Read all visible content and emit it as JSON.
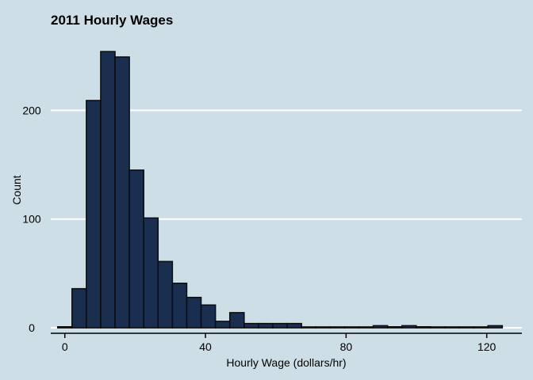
{
  "chart_data": {
    "type": "bar",
    "title": "2011 Hourly Wages",
    "xlabel": "Hourly Wage (dollars/hr)",
    "ylabel": "Count",
    "xlim": [
      -4,
      130
    ],
    "ylim": [
      -5,
      265
    ],
    "xticks": [
      0,
      40,
      80,
      120
    ],
    "yticks": [
      0,
      100,
      200
    ],
    "grid": "horizontal",
    "colors": {
      "background": "#cddee6",
      "bar_fill": "#1a2e4f",
      "bar_edge": "#0b0b0b",
      "grid": "#ffffff",
      "axis": "#000000"
    },
    "bins": [
      {
        "x0": -2.04,
        "x1": 2.04,
        "count": 1
      },
      {
        "x0": 2.04,
        "x1": 6.12,
        "count": 36
      },
      {
        "x0": 6.12,
        "x1": 10.2,
        "count": 209
      },
      {
        "x0": 10.2,
        "x1": 14.28,
        "count": 254
      },
      {
        "x0": 14.28,
        "x1": 18.36,
        "count": 249
      },
      {
        "x0": 18.36,
        "x1": 22.44,
        "count": 145
      },
      {
        "x0": 22.44,
        "x1": 26.52,
        "count": 101
      },
      {
        "x0": 26.52,
        "x1": 30.6,
        "count": 61
      },
      {
        "x0": 30.6,
        "x1": 34.68,
        "count": 41
      },
      {
        "x0": 34.68,
        "x1": 38.76,
        "count": 28
      },
      {
        "x0": 38.76,
        "x1": 42.84,
        "count": 21
      },
      {
        "x0": 42.84,
        "x1": 46.92,
        "count": 6
      },
      {
        "x0": 46.92,
        "x1": 51.0,
        "count": 14
      },
      {
        "x0": 51.0,
        "x1": 55.08,
        "count": 4
      },
      {
        "x0": 55.08,
        "x1": 59.16,
        "count": 4
      },
      {
        "x0": 59.16,
        "x1": 63.24,
        "count": 4
      },
      {
        "x0": 63.24,
        "x1": 67.32,
        "count": 4
      },
      {
        "x0": 67.32,
        "x1": 71.4,
        "count": 0
      },
      {
        "x0": 71.4,
        "x1": 75.48,
        "count": 0
      },
      {
        "x0": 75.48,
        "x1": 79.56,
        "count": 0
      },
      {
        "x0": 79.56,
        "x1": 83.64,
        "count": 0
      },
      {
        "x0": 83.64,
        "x1": 87.72,
        "count": 0
      },
      {
        "x0": 87.72,
        "x1": 91.8,
        "count": 2
      },
      {
        "x0": 91.8,
        "x1": 95.88,
        "count": 1
      },
      {
        "x0": 95.88,
        "x1": 99.96,
        "count": 2
      },
      {
        "x0": 99.96,
        "x1": 104.04,
        "count": 1
      },
      {
        "x0": 104.04,
        "x1": 108.12,
        "count": 0
      },
      {
        "x0": 108.12,
        "x1": 112.2,
        "count": 0
      },
      {
        "x0": 112.2,
        "x1": 116.28,
        "count": 0
      },
      {
        "x0": 116.28,
        "x1": 120.36,
        "count": 0
      },
      {
        "x0": 120.36,
        "x1": 124.44,
        "count": 2
      }
    ]
  }
}
